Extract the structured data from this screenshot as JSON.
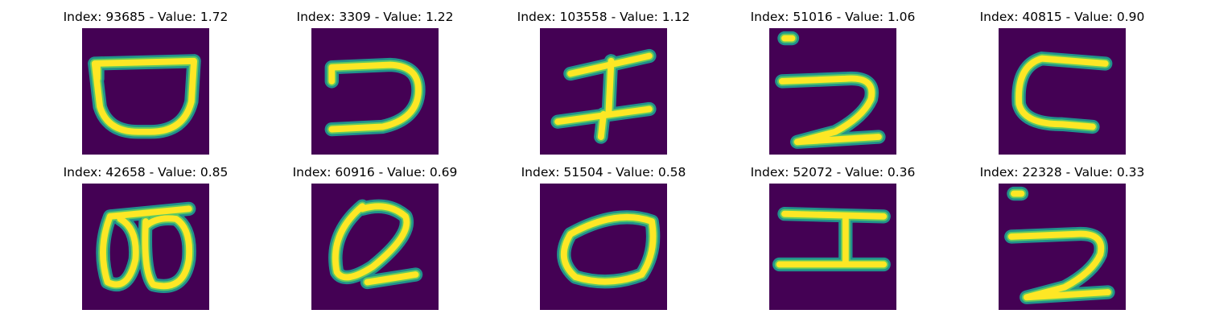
{
  "panels": [
    {
      "title": "Index: 93685 - Value: 1.72",
      "glyph": "bowl"
    },
    {
      "title": "Index: 3309 - Value: 1.22",
      "glyph": "hook"
    },
    {
      "title": "Index: 103558 - Value: 1.12",
      "glyph": "h-bar"
    },
    {
      "title": "Index: 51016 - Value: 1.06",
      "glyph": "two"
    },
    {
      "title": "Index: 40815 - Value: 0.90",
      "glyph": "c-shape"
    },
    {
      "title": "Index: 42658 - Value: 0.85",
      "glyph": "double-loop"
    },
    {
      "title": "Index: 60916 - Value: 0.69",
      "glyph": "q-loop"
    },
    {
      "title": "Index: 51504 - Value: 0.58",
      "glyph": "oval"
    },
    {
      "title": "Index: 52072 - Value: 0.36",
      "glyph": "i-beam"
    },
    {
      "title": "Index: 22328 - Value: 0.33",
      "glyph": "two"
    }
  ],
  "colors": {
    "background": "#440154",
    "edge": "#21918c",
    "stroke": "#fde725",
    "mid": "#5ec962"
  }
}
